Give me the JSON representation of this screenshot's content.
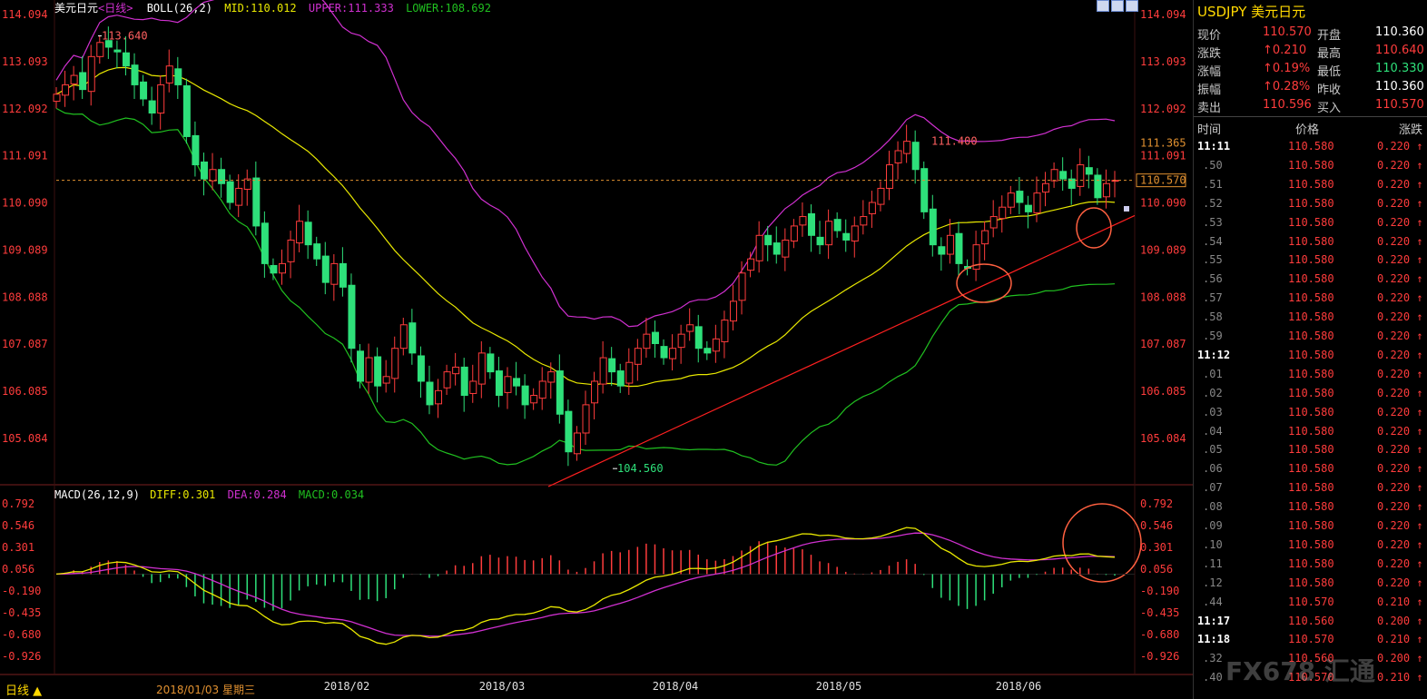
{
  "header": {
    "symbol_name": "美元日元",
    "period": "<日线>",
    "boll_label": "BOLL(26,2)",
    "mid": "MID:110.012",
    "upper": "UPPER:111.333",
    "lower": "LOWER:108.692"
  },
  "macd_header": {
    "label": "MACD(26,12,9)",
    "diff": "DIFF:0.301",
    "dea": "DEA:0.284",
    "macd": "MACD:0.034"
  },
  "footer": {
    "period_button": "日线 ▲",
    "cursor_date": "2018/01/03 星期三",
    "months": [
      "2018/02",
      "2018/03",
      "2018/04",
      "2018/05",
      "2018/06"
    ]
  },
  "annotations": {
    "high_label": "113.640",
    "low_label": "104.560",
    "recent_high_label": "111.400",
    "last_price_tag": "110.570",
    "upper_band_tag": "111.365"
  },
  "price_axis": [
    "114.094",
    "113.093",
    "112.092",
    "111.091",
    "110.090",
    "109.089",
    "108.088",
    "107.087",
    "106.085",
    "105.084"
  ],
  "macd_axis": [
    "0.792",
    "0.546",
    "0.301",
    "0.056",
    "-0.190",
    "-0.435",
    "-0.680",
    "-0.926"
  ],
  "quote_panel": {
    "title": "USDJPY 美元日元",
    "rows": [
      {
        "l1": "现价",
        "v1": "110.570",
        "c1": "red",
        "l2": "开盘",
        "v2": "110.360",
        "c2": "white"
      },
      {
        "l1": "涨跌",
        "v1": "↑0.210",
        "c1": "red",
        "l2": "最高",
        "v2": "110.640",
        "c2": "red"
      },
      {
        "l1": "涨幅",
        "v1": "↑0.19%",
        "c1": "red",
        "l2": "最低",
        "v2": "110.330",
        "c2": "green"
      },
      {
        "l1": "振幅",
        "v1": "↑0.28%",
        "c1": "red",
        "l2": "昨收",
        "v2": "110.360",
        "c2": "white"
      },
      {
        "l1": "卖出",
        "v1": "110.596",
        "c1": "red",
        "l2": "买入",
        "v2": "110.570",
        "c2": "red"
      }
    ],
    "tick_header": {
      "time": "时间",
      "price": "价格",
      "change": "涨跌"
    },
    "ticks": [
      {
        "t": "11:11",
        "p": "110.580",
        "c": "0.220 ↑",
        "big": true
      },
      {
        "t": ".50",
        "p": "110.580",
        "c": "0.220 ↑"
      },
      {
        "t": ".51",
        "p": "110.580",
        "c": "0.220 ↑"
      },
      {
        "t": ".52",
        "p": "110.580",
        "c": "0.220 ↑"
      },
      {
        "t": ".53",
        "p": "110.580",
        "c": "0.220 ↑"
      },
      {
        "t": ".54",
        "p": "110.580",
        "c": "0.220 ↑"
      },
      {
        "t": ".55",
        "p": "110.580",
        "c": "0.220 ↑"
      },
      {
        "t": ".56",
        "p": "110.580",
        "c": "0.220 ↑"
      },
      {
        "t": ".57",
        "p": "110.580",
        "c": "0.220 ↑"
      },
      {
        "t": ".58",
        "p": "110.580",
        "c": "0.220 ↑"
      },
      {
        "t": ".59",
        "p": "110.580",
        "c": "0.220 ↑"
      },
      {
        "t": "11:12",
        "p": "110.580",
        "c": "0.220 ↑",
        "big": true
      },
      {
        "t": ".01",
        "p": "110.580",
        "c": "0.220 ↑"
      },
      {
        "t": ".02",
        "p": "110.580",
        "c": "0.220 ↑"
      },
      {
        "t": ".03",
        "p": "110.580",
        "c": "0.220 ↑"
      },
      {
        "t": ".04",
        "p": "110.580",
        "c": "0.220 ↑"
      },
      {
        "t": ".05",
        "p": "110.580",
        "c": "0.220 ↑"
      },
      {
        "t": ".06",
        "p": "110.580",
        "c": "0.220 ↑"
      },
      {
        "t": ".07",
        "p": "110.580",
        "c": "0.220 ↑"
      },
      {
        "t": ".08",
        "p": "110.580",
        "c": "0.220 ↑"
      },
      {
        "t": ".09",
        "p": "110.580",
        "c": "0.220 ↑"
      },
      {
        "t": ".10",
        "p": "110.580",
        "c": "0.220 ↑"
      },
      {
        "t": ".11",
        "p": "110.580",
        "c": "0.220 ↑"
      },
      {
        "t": ".12",
        "p": "110.580",
        "c": "0.220 ↑"
      },
      {
        "t": ".44",
        "p": "110.570",
        "c": "0.210 ↑"
      },
      {
        "t": "11:17",
        "p": "110.560",
        "c": "0.200 ↑",
        "big": true
      },
      {
        "t": "11:18",
        "p": "110.570",
        "c": "0.210 ↑",
        "big": true
      },
      {
        "t": ".32",
        "p": "110.560",
        "c": "0.200 ↑"
      },
      {
        "t": ".40",
        "p": "110.570",
        "c": "0.210 ↑"
      }
    ]
  },
  "watermark": "FX678 汇通",
  "colors": {
    "up": "#ff3c3c",
    "down": "#2ee07a",
    "mid": "#e8e800",
    "upper": "#d030d0",
    "lower": "#20c020",
    "diff": "#e8e800",
    "dea": "#d030d0",
    "trend": "#ff2020",
    "axis": "#ff3c3c",
    "annot": "#ff6040"
  },
  "chart_data": [
    {
      "type": "candlestick",
      "title": "美元日元 <日线>",
      "ylim": [
        104.3,
        114.3
      ],
      "x_ticks": [
        "2018/01/03",
        "2018/02",
        "2018/03",
        "2018/04",
        "2018/05",
        "2018/06"
      ],
      "close_series_approx": [
        112.4,
        112.6,
        112.8,
        112.5,
        113.2,
        113.5,
        113.4,
        113.3,
        113.0,
        112.6,
        112.3,
        112.0,
        112.6,
        113.0,
        112.6,
        111.5,
        110.9,
        110.6,
        110.8,
        110.5,
        110.1,
        110.4,
        110.6,
        109.6,
        108.8,
        108.6,
        108.8,
        109.3,
        109.7,
        109.2,
        108.9,
        108.4,
        108.8,
        108.3,
        107.0,
        106.3,
        106.8,
        106.2,
        106.4,
        107.0,
        107.5,
        106.9,
        106.3,
        105.8,
        106.1,
        106.5,
        106.6,
        106.0,
        106.3,
        106.9,
        106.5,
        106.0,
        106.4,
        106.2,
        105.8,
        106.0,
        106.3,
        106.5,
        105.6,
        104.8,
        105.2,
        105.8,
        106.3,
        106.8,
        106.5,
        106.2,
        106.7,
        107.0,
        107.3,
        107.1,
        106.8,
        107.0,
        107.3,
        107.5,
        107.0,
        106.9,
        107.2,
        107.6,
        108.0,
        108.6,
        108.9,
        109.4,
        109.2,
        109.0,
        109.3,
        109.6,
        109.8,
        109.4,
        109.2,
        109.7,
        109.5,
        109.3,
        109.6,
        109.8,
        110.1,
        110.4,
        110.9,
        111.2,
        111.4,
        110.8,
        109.9,
        109.2,
        109.0,
        109.4,
        108.8,
        108.7,
        109.2,
        109.5,
        109.8,
        110.0,
        110.3,
        110.1,
        109.9,
        110.3,
        110.5,
        110.8,
        110.6,
        110.4,
        110.9,
        110.7,
        110.2,
        110.5,
        110.57
      ],
      "annotations": {
        "high": 113.64,
        "low": 104.56,
        "recent_high": 111.4,
        "last": 110.57,
        "upper_band": 111.365
      },
      "bands": {
        "mid": 110.012,
        "upper": 111.333,
        "lower": 108.692
      }
    },
    {
      "type": "line",
      "title": "MACD(26,12,9)",
      "ylim": [
        -1.05,
        0.85
      ],
      "series": [
        {
          "name": "DIFF",
          "last": 0.301
        },
        {
          "name": "DEA",
          "last": 0.284
        },
        {
          "name": "MACD",
          "last": 0.034
        }
      ]
    }
  ]
}
